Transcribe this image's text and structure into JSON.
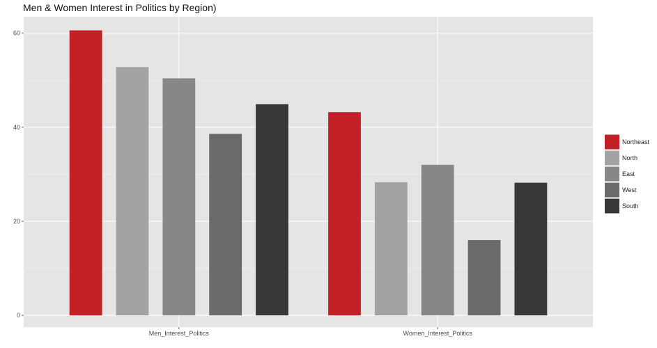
{
  "chart_data": {
    "type": "bar",
    "title": "Men & Women Interest in Politics by Region)",
    "xlabel": "",
    "ylabel": "",
    "categories": [
      "Men_Interest_Politics",
      "Women_Interest_Politics"
    ],
    "series": [
      {
        "name": "Northeast",
        "color": "#c31f27",
        "values": [
          60.6,
          43.2
        ]
      },
      {
        "name": "North",
        "color": "#a3a3a3",
        "values": [
          52.8,
          28.3
        ]
      },
      {
        "name": "East",
        "color": "#878787",
        "values": [
          50.4,
          32.0
        ]
      },
      {
        "name": "West",
        "color": "#6a6a6a",
        "values": [
          38.6,
          16.0
        ]
      },
      {
        "name": "South",
        "color": "#373737",
        "values": [
          44.9,
          28.2
        ]
      }
    ],
    "ylim": [
      -2.5,
      63.5
    ],
    "yticks": [
      "0",
      "20",
      "40",
      "60"
    ],
    "grid": true,
    "legend": "right",
    "panel_color": "#e5e5e5"
  }
}
